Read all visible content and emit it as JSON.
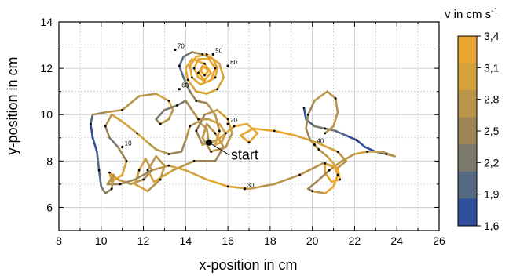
{
  "chart_data": {
    "type": "line",
    "title": "",
    "xlabel": "x-position in cm",
    "ylabel": "y-position in cm",
    "xlim": [
      8,
      26
    ],
    "ylim": [
      5,
      14
    ],
    "xticks": [
      8,
      10,
      12,
      14,
      16,
      18,
      20,
      22,
      24,
      26
    ],
    "yticks": [
      6,
      8,
      10,
      12,
      14
    ],
    "grid": true,
    "start_label": "start",
    "start_point": {
      "x": 15.1,
      "y": 8.8
    },
    "time_markers": [
      {
        "label": "10",
        "x": 11.0,
        "y": 8.6
      },
      {
        "label": "20",
        "x": 16.0,
        "y": 9.6
      },
      {
        "label": "30",
        "x": 16.8,
        "y": 6.8
      },
      {
        "label": "40",
        "x": 20.1,
        "y": 8.7
      },
      {
        "label": "50",
        "x": 15.3,
        "y": 12.6
      },
      {
        "label": "60",
        "x": 13.7,
        "y": 11.1
      },
      {
        "label": "70",
        "x": 13.5,
        "y": 12.8
      },
      {
        "label": "80",
        "x": 16.0,
        "y": 12.1
      }
    ],
    "colorbar": {
      "title": "v in cm s",
      "title_superscript": "-1",
      "min": 1.6,
      "max": 3.4,
      "tick_labels": [
        "3,4",
        "3,1",
        "2,8",
        "2,5",
        "2,2",
        "1,9",
        "1,6"
      ],
      "colors": [
        "#e8a630",
        "#d4a23a",
        "#b89548",
        "#9e8558",
        "#7c7a6c",
        "#576a84",
        "#2f4f9c"
      ]
    },
    "series": [
      {
        "points": [
          [
            15.1,
            8.8,
            2.6
          ],
          [
            15.0,
            9.4,
            2.8
          ],
          [
            14.6,
            9.7,
            2.9
          ],
          [
            14.2,
            9.5,
            2.8
          ],
          [
            14.0,
            8.9,
            2.6
          ],
          [
            13.8,
            8.4,
            2.5
          ],
          [
            13.2,
            8.3,
            2.6
          ],
          [
            12.6,
            8.5,
            2.7
          ],
          [
            12.2,
            8.8,
            2.9
          ],
          [
            11.7,
            9.2,
            3.0
          ],
          [
            11.0,
            9.7,
            3.1
          ],
          [
            10.5,
            10.0,
            3.0
          ],
          [
            10.2,
            9.5,
            2.6
          ],
          [
            10.4,
            9.0,
            2.2
          ],
          [
            10.8,
            8.6,
            2.4
          ],
          [
            11.2,
            8.0,
            2.8
          ],
          [
            11.0,
            7.4,
            3.1
          ],
          [
            10.5,
            7.1,
            3.2
          ],
          [
            10.4,
            7.5,
            3.0
          ],
          [
            10.8,
            7.2,
            2.9
          ],
          [
            11.4,
            7.0,
            2.7
          ],
          [
            12.0,
            7.2,
            2.6
          ],
          [
            12.4,
            7.6,
            2.6
          ],
          [
            12.1,
            8.1,
            2.8
          ],
          [
            11.8,
            7.6,
            3.0
          ],
          [
            11.6,
            7.0,
            3.1
          ],
          [
            12.2,
            6.7,
            2.9
          ],
          [
            12.8,
            7.2,
            2.7
          ],
          [
            13.0,
            7.8,
            2.6
          ],
          [
            12.6,
            8.2,
            2.7
          ],
          [
            12.2,
            7.6,
            2.9
          ],
          [
            12.5,
            7.1,
            3.0
          ],
          [
            13.4,
            7.6,
            2.8
          ],
          [
            14.4,
            8.0,
            2.6
          ],
          [
            15.4,
            8.0,
            2.5
          ],
          [
            15.8,
            8.6,
            2.7
          ],
          [
            15.4,
            9.2,
            2.8
          ],
          [
            15.0,
            9.6,
            2.9
          ],
          [
            14.8,
            9.0,
            2.7
          ],
          [
            15.2,
            8.4,
            2.6
          ],
          [
            15.9,
            8.6,
            2.7
          ],
          [
            16.2,
            9.2,
            2.9
          ],
          [
            16.0,
            9.8,
            3.0
          ],
          [
            15.5,
            10.2,
            2.8
          ],
          [
            14.9,
            10.0,
            2.6
          ],
          [
            14.5,
            9.3,
            2.5
          ],
          [
            14.8,
            8.7,
            2.7
          ],
          [
            15.5,
            8.9,
            2.9
          ],
          [
            16.3,
            9.5,
            3.1
          ],
          [
            16.9,
            9.6,
            3.2
          ],
          [
            17.4,
            9.2,
            3.3
          ],
          [
            17.0,
            8.8,
            3.3
          ],
          [
            16.6,
            9.1,
            3.2
          ],
          [
            17.2,
            9.4,
            3.2
          ],
          [
            18.2,
            9.3,
            3.2
          ],
          [
            19.2,
            9.1,
            3.1
          ],
          [
            20.2,
            8.8,
            3.0
          ],
          [
            21.2,
            8.4,
            2.8
          ],
          [
            21.6,
            8.0,
            2.6
          ],
          [
            21.2,
            7.7,
            2.9
          ],
          [
            20.6,
            7.9,
            3.1
          ],
          [
            20.6,
            7.5,
            3.2
          ],
          [
            20.9,
            7.1,
            3.3
          ],
          [
            21.3,
            7.2,
            3.3
          ],
          [
            21.2,
            7.7,
            3.1
          ],
          [
            20.5,
            7.9,
            2.8
          ],
          [
            19.4,
            7.4,
            2.6
          ],
          [
            18.2,
            7.0,
            2.7
          ],
          [
            17.0,
            6.8,
            2.9
          ],
          [
            16.0,
            6.9,
            3.1
          ],
          [
            15.0,
            7.2,
            3.2
          ],
          [
            14.0,
            7.6,
            3.0
          ],
          [
            13.2,
            7.8,
            2.8
          ],
          [
            12.4,
            7.6,
            2.6
          ],
          [
            11.6,
            7.2,
            2.5
          ],
          [
            10.9,
            7.0,
            2.6
          ],
          [
            10.3,
            7.0,
            2.6
          ],
          [
            10.6,
            7.4,
            2.8
          ],
          [
            10.5,
            6.8,
            2.7
          ],
          [
            10.2,
            6.6,
            2.5
          ],
          [
            10.0,
            6.9,
            2.2
          ],
          [
            9.9,
            7.6,
            2.0
          ],
          [
            9.8,
            8.4,
            1.8
          ],
          [
            9.6,
            9.0,
            1.7
          ],
          [
            9.5,
            9.6,
            1.9
          ],
          [
            9.6,
            10.0,
            2.3
          ],
          [
            10.2,
            10.1,
            2.6
          ],
          [
            11.0,
            10.2,
            2.7
          ],
          [
            11.8,
            10.8,
            2.8
          ],
          [
            12.6,
            10.9,
            2.9
          ],
          [
            13.2,
            10.6,
            3.0
          ],
          [
            13.4,
            10.2,
            2.9
          ],
          [
            13.2,
            9.8,
            2.8
          ],
          [
            12.8,
            9.6,
            2.6
          ],
          [
            12.6,
            9.8,
            2.4
          ],
          [
            13.0,
            10.2,
            2.3
          ],
          [
            13.6,
            10.4,
            2.3
          ],
          [
            14.0,
            10.6,
            2.4
          ],
          [
            14.3,
            10.2,
            2.6
          ],
          [
            14.6,
            9.8,
            2.8
          ],
          [
            15.1,
            9.8,
            2.9
          ],
          [
            15.6,
            9.6,
            3.0
          ],
          [
            15.9,
            9.2,
            3.1
          ],
          [
            15.7,
            8.8,
            3.1
          ],
          [
            15.4,
            8.7,
            3.0
          ],
          [
            15.6,
            9.3,
            2.9
          ],
          [
            15.4,
            10.0,
            2.8
          ],
          [
            15.0,
            10.5,
            2.6
          ],
          [
            14.5,
            10.6,
            2.5
          ],
          [
            14.2,
            11.0,
            2.3
          ],
          [
            13.9,
            11.6,
            2.0
          ],
          [
            13.7,
            12.1,
            1.9
          ],
          [
            13.9,
            12.5,
            2.1
          ],
          [
            14.3,
            12.7,
            2.4
          ],
          [
            14.8,
            12.6,
            2.7
          ],
          [
            15.3,
            12.4,
            3.0
          ],
          [
            15.5,
            12.0,
            3.2
          ],
          [
            15.4,
            11.6,
            3.3
          ],
          [
            15.0,
            11.4,
            3.3
          ],
          [
            14.6,
            11.6,
            3.3
          ],
          [
            14.4,
            12.0,
            3.4
          ],
          [
            14.6,
            12.4,
            3.4
          ],
          [
            15.1,
            12.4,
            3.4
          ],
          [
            15.4,
            12.0,
            3.4
          ],
          [
            15.2,
            11.5,
            3.4
          ],
          [
            14.7,
            11.3,
            3.4
          ],
          [
            14.3,
            11.6,
            3.3
          ],
          [
            14.2,
            12.1,
            3.3
          ],
          [
            14.5,
            12.5,
            3.2
          ],
          [
            15.0,
            12.6,
            3.2
          ],
          [
            15.6,
            12.2,
            3.1
          ],
          [
            15.8,
            11.6,
            3.0
          ],
          [
            15.5,
            11.1,
            2.9
          ],
          [
            15.0,
            10.9,
            2.9
          ],
          [
            14.5,
            11.0,
            3.0
          ],
          [
            14.1,
            11.5,
            3.1
          ],
          [
            14.0,
            12.0,
            3.2
          ],
          [
            14.3,
            12.4,
            3.2
          ],
          [
            14.9,
            12.2,
            3.3
          ],
          [
            15.2,
            11.8,
            3.3
          ],
          [
            14.9,
            11.5,
            3.4
          ],
          [
            14.6,
            11.8,
            3.4
          ],
          [
            14.8,
            12.1,
            3.4
          ],
          [
            15.1,
            11.9,
            3.4
          ],
          [
            14.9,
            11.7,
            3.4
          ],
          [
            14.7,
            11.9,
            3.3
          ],
          [
            14.8,
            12.0,
            3.3
          ]
        ]
      },
      {
        "points": [
          [
            19.6,
            10.3,
            1.7
          ],
          [
            19.7,
            9.8,
            1.9
          ],
          [
            20.1,
            9.5,
            2.1
          ],
          [
            20.6,
            9.4,
            2.2
          ],
          [
            21.1,
            9.3,
            2.1
          ],
          [
            21.6,
            9.1,
            1.9
          ],
          [
            22.1,
            8.9,
            1.8
          ],
          [
            22.5,
            8.6,
            1.7
          ],
          [
            23.0,
            8.4,
            1.9
          ],
          [
            23.5,
            8.3,
            2.3
          ],
          [
            23.9,
            8.2,
            2.6
          ],
          [
            23.3,
            8.4,
            2.9
          ],
          [
            22.6,
            8.4,
            3.0
          ],
          [
            22.0,
            8.3,
            2.9
          ],
          [
            21.4,
            8.0,
            2.7
          ],
          [
            20.8,
            7.6,
            2.6
          ],
          [
            20.2,
            7.1,
            2.5
          ],
          [
            19.8,
            6.8,
            2.4
          ],
          [
            20.0,
            6.7,
            2.6
          ],
          [
            20.6,
            6.6,
            3.0
          ],
          [
            21.0,
            6.9,
            3.3
          ],
          [
            21.2,
            7.4,
            3.3
          ],
          [
            21.0,
            7.9,
            3.1
          ],
          [
            20.7,
            8.2,
            2.9
          ],
          [
            20.3,
            8.5,
            2.7
          ],
          [
            19.9,
            8.9,
            2.6
          ],
          [
            19.7,
            9.4,
            2.5
          ],
          [
            19.8,
            10.0,
            2.5
          ],
          [
            20.1,
            10.6,
            2.6
          ],
          [
            20.7,
            11.0,
            2.7
          ],
          [
            21.1,
            10.7,
            2.8
          ],
          [
            21.2,
            10.1,
            2.8
          ],
          [
            21.0,
            9.5,
            2.7
          ],
          [
            20.6,
            9.2,
            2.6
          ]
        ]
      }
    ]
  }
}
